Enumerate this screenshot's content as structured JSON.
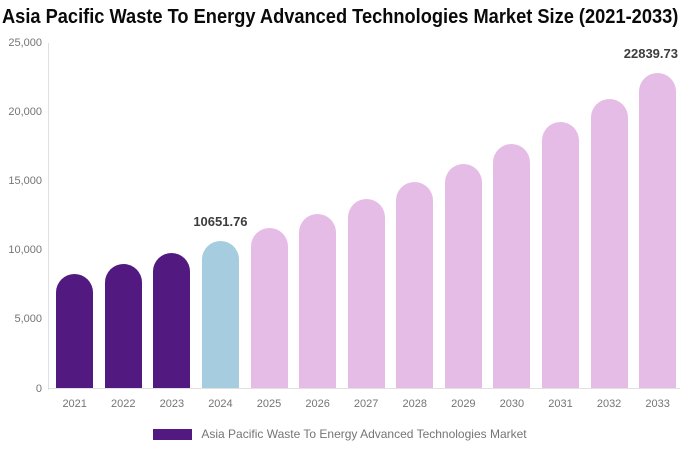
{
  "chart_data": {
    "type": "bar",
    "title": "Asia Pacific Waste To Energy Advanced Technologies Market Size (2021-2033)",
    "xlabel": "",
    "ylabel": "",
    "categories": [
      "2021",
      "2022",
      "2023",
      "2024",
      "2025",
      "2026",
      "2027",
      "2028",
      "2029",
      "2030",
      "2031",
      "2032",
      "2033"
    ],
    "values": [
      8260,
      8991,
      9786,
      10651.76,
      11594,
      12620,
      13736,
      14951,
      16273,
      17712,
      19279,
      20984,
      22839.73
    ],
    "value_roles": [
      "historical",
      "historical",
      "historical",
      "current",
      "forecast",
      "forecast",
      "forecast",
      "forecast",
      "forecast",
      "forecast",
      "forecast",
      "forecast",
      "forecast"
    ],
    "value_labels": [
      {
        "category": "2024",
        "text": "10651.76",
        "align": "center"
      },
      {
        "category": "2033",
        "text": "22839.73",
        "align": "right"
      }
    ],
    "ylim": [
      0,
      25000
    ],
    "ytick_interval": 5000,
    "yticks": [
      {
        "value": 0,
        "label": "0"
      },
      {
        "value": 5000,
        "label": "5,000"
      },
      {
        "value": 10000,
        "label": "10,000"
      },
      {
        "value": 15000,
        "label": "15,000"
      },
      {
        "value": 20000,
        "label": "20,000"
      },
      {
        "value": 25000,
        "label": "25,000"
      }
    ],
    "grid": false,
    "legend": {
      "label": "Asia Pacific Waste To Energy Advanced Technologies Market",
      "position": "bottom"
    },
    "colors": {
      "historical": "#521980",
      "current": "#a6cce0",
      "forecast": "#e5bce6",
      "axis_line": "#e0e0e0",
      "axis_text": "#757575",
      "value_label_text": "#3d3d3d",
      "title_text": "#0a0a0a",
      "legend_text": "#757575",
      "background": "#ffffff"
    }
  }
}
